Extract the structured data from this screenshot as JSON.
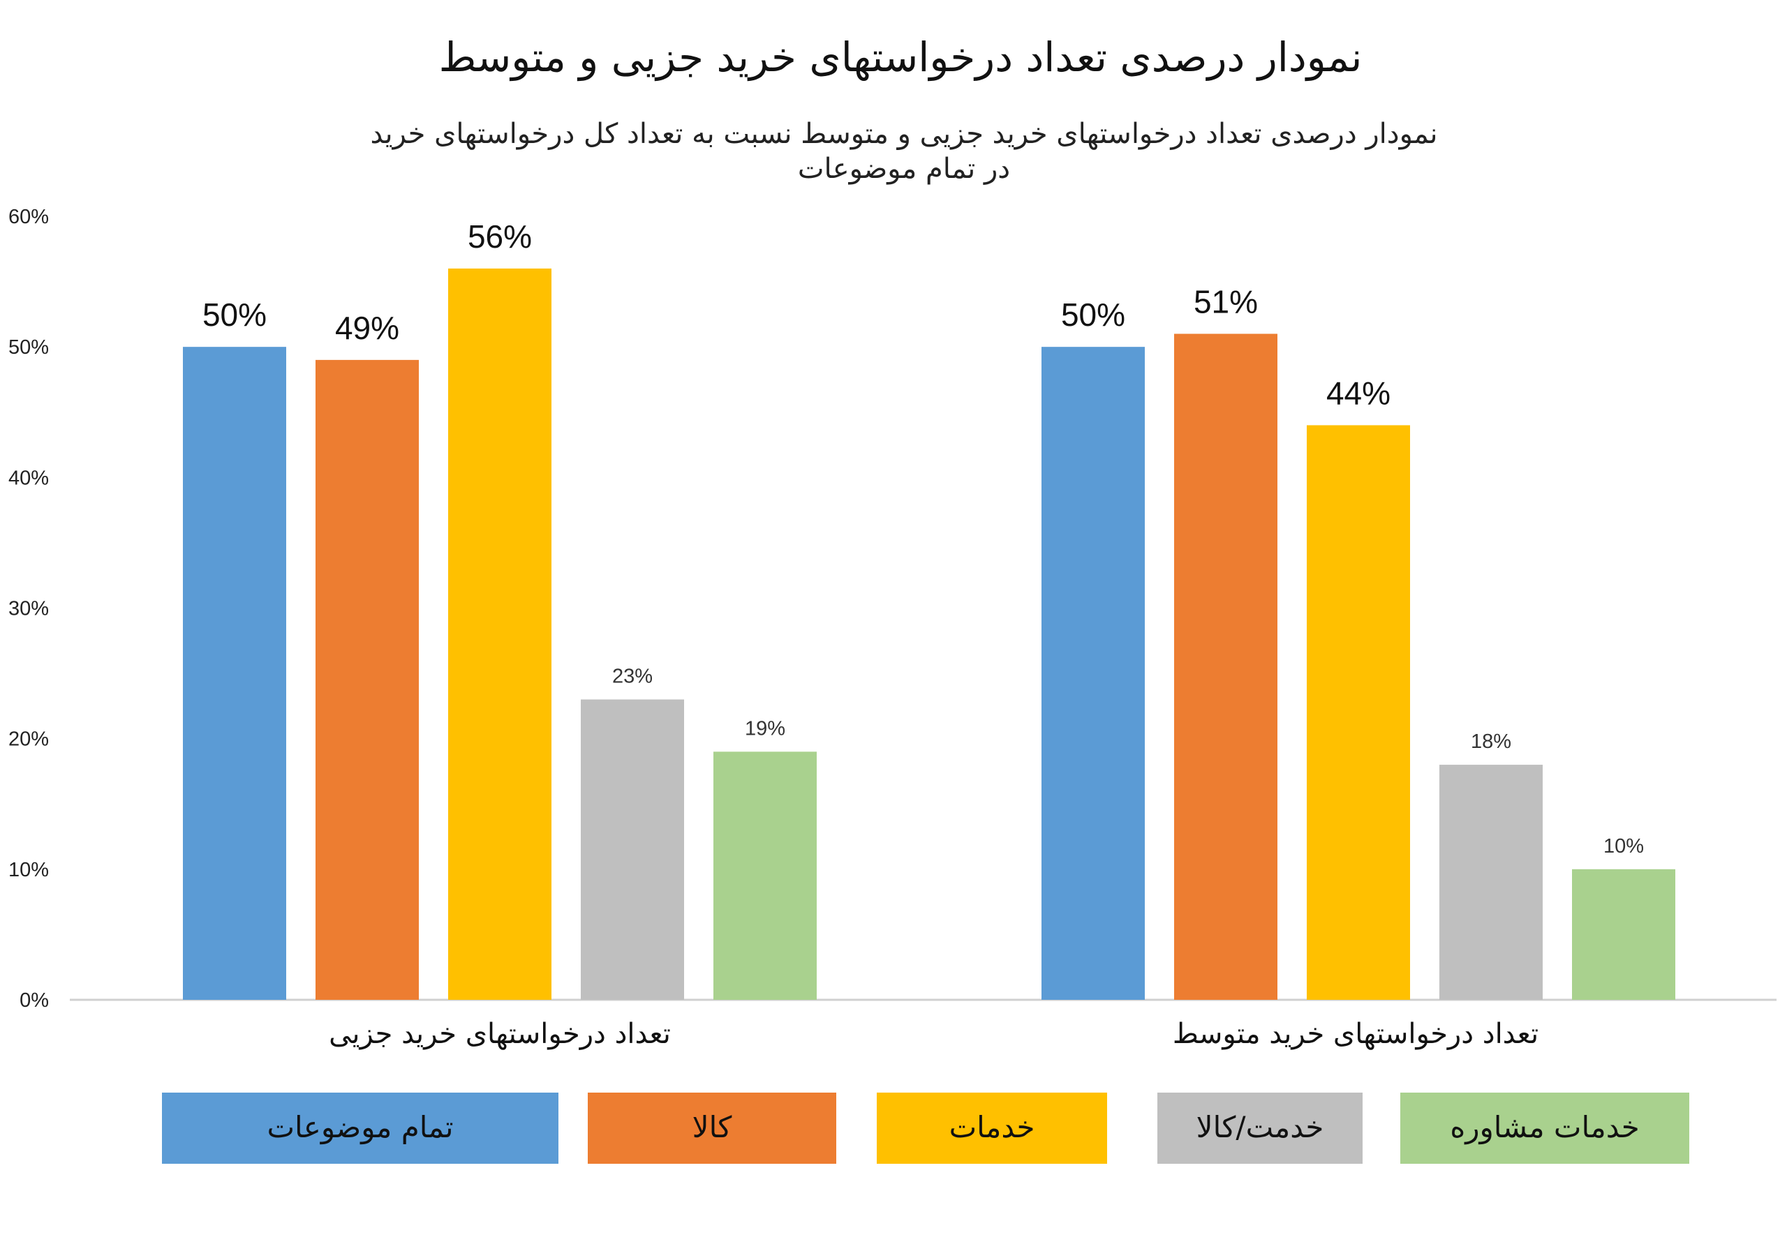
{
  "chart_data": {
    "type": "bar",
    "title": "نمودار درصدی تعداد درخواستهای خرید جزیی و متوسط",
    "subtitle_lines": [
      "نمودار درصدی تعداد درخواستهای خرید جزیی و متوسط نسبت به تعداد کل درخواستهای خرید",
      "در تمام موضوعات"
    ],
    "categories": [
      "تعداد درخواستهای خرید جزیی",
      "تعداد درخواستهای خرید متوسط"
    ],
    "series": [
      {
        "name": "تمام موضوعات",
        "color": "#5B9BD5",
        "values": [
          50,
          50
        ]
      },
      {
        "name": "کالا",
        "color": "#ED7D31",
        "values": [
          49,
          51
        ]
      },
      {
        "name": "خدمات",
        "color": "#FFC000",
        "values": [
          56,
          44
        ]
      },
      {
        "name": "خدمت/کالا",
        "color": "#BFBFBF",
        "values": [
          23,
          18
        ]
      },
      {
        "name": "خدمات مشاوره",
        "color": "#A9D18E",
        "values": [
          19,
          10
        ]
      }
    ],
    "value_labels": [
      [
        "50%",
        "50%"
      ],
      [
        "49%",
        "51%"
      ],
      [
        "56%",
        "44%"
      ],
      [
        "23%",
        "18%"
      ],
      [
        "19%",
        "10%"
      ]
    ],
    "ylim": [
      0,
      60
    ],
    "yticks": [
      "0%",
      "10%",
      "20%",
      "30%",
      "40%",
      "50%",
      "60%"
    ],
    "grid": false,
    "legend_position": "bottom"
  }
}
